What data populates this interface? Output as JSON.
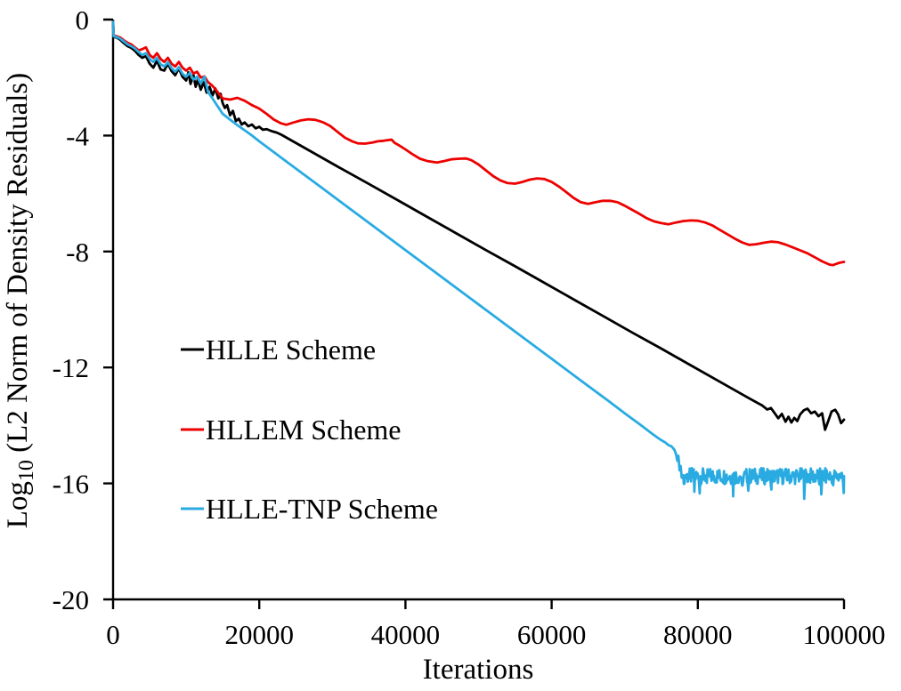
{
  "figure": {
    "xlabel": "Iterations",
    "ylabel_prefix": "Log",
    "ylabel_sub": "10",
    "ylabel_rest": " (L2 Norm of Density Residuals)"
  },
  "chart_data": {
    "type": "line",
    "title": "",
    "xlabel": "Iterations",
    "ylabel": "Log10 (L2 Norm of Density Residuals)",
    "xlim": [
      0,
      100000
    ],
    "ylim": [
      -20,
      0
    ],
    "xticks": [
      0,
      20000,
      40000,
      60000,
      80000,
      100000
    ],
    "xtick_labels": [
      "0",
      "20000",
      "40000",
      "60000",
      "80000",
      "100000"
    ],
    "yticks": [
      0,
      -4,
      -8,
      -12,
      -16,
      -20
    ],
    "ytick_labels": [
      "0",
      "-4",
      "-8",
      "-12",
      "-16",
      "-20"
    ],
    "grid": false,
    "legend_position": "inside-left-middle",
    "axis_color": "#000000",
    "series": [
      {
        "name": "HLLE Scheme",
        "color": "#000000",
        "points": [
          [
            0,
            -0.08
          ],
          [
            80,
            -0.6
          ],
          [
            500,
            -0.62
          ],
          [
            1000,
            -0.7
          ],
          [
            1500,
            -0.82
          ],
          [
            2000,
            -0.92
          ],
          [
            2500,
            -0.98
          ],
          [
            3000,
            -1.08
          ],
          [
            3500,
            -1.22
          ],
          [
            4000,
            -1.32
          ],
          [
            4500,
            -1.26
          ],
          [
            5000,
            -1.52
          ],
          [
            5500,
            -1.66
          ],
          [
            6000,
            -1.42
          ],
          [
            6500,
            -1.72
          ],
          [
            7000,
            -1.76
          ],
          [
            7500,
            -1.52
          ],
          [
            8000,
            -1.78
          ],
          [
            8500,
            -1.92
          ],
          [
            9000,
            -1.68
          ],
          [
            9500,
            -1.98
          ],
          [
            10000,
            -2.1
          ],
          [
            10300,
            -1.82
          ],
          [
            10600,
            -2.22
          ],
          [
            11000,
            -1.92
          ],
          [
            11300,
            -2.32
          ],
          [
            11600,
            -2.06
          ],
          [
            12000,
            -2.42
          ],
          [
            12400,
            -2.16
          ],
          [
            12800,
            -2.52
          ],
          [
            13200,
            -2.32
          ],
          [
            13600,
            -2.62
          ],
          [
            14000,
            -2.38
          ],
          [
            14400,
            -2.72
          ],
          [
            14700,
            -2.56
          ],
          [
            15000,
            -2.88
          ],
          [
            15300,
            -3.05
          ],
          [
            15600,
            -2.95
          ],
          [
            16000,
            -3.3
          ],
          [
            16400,
            -3.15
          ],
          [
            16800,
            -3.5
          ],
          [
            17200,
            -3.42
          ],
          [
            17600,
            -3.62
          ],
          [
            18000,
            -3.55
          ],
          [
            18500,
            -3.68
          ],
          [
            19000,
            -3.62
          ],
          [
            19500,
            -3.75
          ],
          [
            20000,
            -3.7
          ],
          [
            20500,
            -3.8
          ],
          [
            21000,
            -3.78
          ],
          [
            21700,
            -3.85
          ],
          [
            22400,
            -3.9
          ],
          [
            23000,
            -3.97
          ],
          [
            27000,
            -4.54
          ],
          [
            31000,
            -5.11
          ],
          [
            35000,
            -5.67
          ],
          [
            39000,
            -6.24
          ],
          [
            43000,
            -6.81
          ],
          [
            47000,
            -7.38
          ],
          [
            51000,
            -7.95
          ],
          [
            55000,
            -8.51
          ],
          [
            59000,
            -9.08
          ],
          [
            63000,
            -9.65
          ],
          [
            67000,
            -10.22
          ],
          [
            71000,
            -10.79
          ],
          [
            75000,
            -11.35
          ],
          [
            79000,
            -11.92
          ],
          [
            83000,
            -12.49
          ],
          [
            87000,
            -13.06
          ],
          [
            88800,
            -13.31
          ],
          [
            89500,
            -13.45
          ],
          [
            90000,
            -13.4
          ],
          [
            90500,
            -13.57
          ],
          [
            91000,
            -13.75
          ],
          [
            91500,
            -13.6
          ],
          [
            92000,
            -13.87
          ],
          [
            92400,
            -13.7
          ],
          [
            92800,
            -13.9
          ],
          [
            93200,
            -13.74
          ],
          [
            93600,
            -13.85
          ],
          [
            94000,
            -13.62
          ],
          [
            94500,
            -13.48
          ],
          [
            95000,
            -13.42
          ],
          [
            95500,
            -13.58
          ],
          [
            96000,
            -13.52
          ],
          [
            96500,
            -13.68
          ],
          [
            97000,
            -13.58
          ],
          [
            97400,
            -14.15
          ],
          [
            97800,
            -13.88
          ],
          [
            98300,
            -13.52
          ],
          [
            98800,
            -13.46
          ],
          [
            99200,
            -13.62
          ],
          [
            99600,
            -13.92
          ],
          [
            100000,
            -13.8
          ]
        ]
      },
      {
        "name": "HLLEM Scheme",
        "color": "#ed0000",
        "points": [
          [
            0,
            -0.08
          ],
          [
            80,
            -0.55
          ],
          [
            500,
            -0.58
          ],
          [
            1000,
            -0.62
          ],
          [
            1500,
            -0.72
          ],
          [
            2000,
            -0.8
          ],
          [
            2500,
            -0.86
          ],
          [
            3000,
            -0.96
          ],
          [
            3500,
            -1.06
          ],
          [
            4000,
            -1.02
          ],
          [
            4500,
            -0.96
          ],
          [
            5000,
            -1.22
          ],
          [
            5500,
            -1.32
          ],
          [
            6000,
            -1.16
          ],
          [
            6500,
            -1.36
          ],
          [
            7000,
            -1.46
          ],
          [
            7500,
            -1.32
          ],
          [
            8000,
            -1.52
          ],
          [
            8500,
            -1.62
          ],
          [
            9000,
            -1.46
          ],
          [
            9500,
            -1.66
          ],
          [
            10000,
            -1.76
          ],
          [
            10500,
            -1.66
          ],
          [
            11000,
            -1.86
          ],
          [
            11500,
            -1.8
          ],
          [
            12000,
            -2.0
          ],
          [
            12500,
            -1.96
          ],
          [
            13000,
            -2.16
          ],
          [
            13500,
            -2.26
          ],
          [
            14000,
            -2.4
          ],
          [
            14500,
            -2.56
          ],
          [
            15000,
            -2.72
          ],
          [
            16000,
            -2.76
          ],
          [
            17000,
            -2.7
          ],
          [
            18000,
            -2.8
          ],
          [
            19000,
            -2.95
          ],
          [
            20000,
            -3.07
          ],
          [
            21000,
            -3.25
          ],
          [
            22000,
            -3.45
          ],
          [
            23000,
            -3.58
          ],
          [
            23700,
            -3.63
          ],
          [
            24700,
            -3.55
          ],
          [
            25700,
            -3.48
          ],
          [
            26700,
            -3.44
          ],
          [
            27700,
            -3.46
          ],
          [
            28700,
            -3.54
          ],
          [
            29700,
            -3.67
          ],
          [
            30700,
            -3.87
          ],
          [
            31700,
            -4.07
          ],
          [
            32700,
            -4.2
          ],
          [
            33500,
            -4.27
          ],
          [
            34500,
            -4.28
          ],
          [
            35500,
            -4.24
          ],
          [
            36200,
            -4.2
          ],
          [
            37000,
            -4.18
          ],
          [
            38100,
            -4.14
          ],
          [
            38500,
            -4.25
          ],
          [
            39200,
            -4.35
          ],
          [
            40000,
            -4.48
          ],
          [
            41000,
            -4.65
          ],
          [
            42000,
            -4.8
          ],
          [
            43000,
            -4.88
          ],
          [
            44300,
            -4.93
          ],
          [
            45300,
            -4.88
          ],
          [
            46300,
            -4.82
          ],
          [
            47300,
            -4.8
          ],
          [
            48300,
            -4.79
          ],
          [
            49000,
            -4.85
          ],
          [
            50000,
            -5.0
          ],
          [
            51000,
            -5.2
          ],
          [
            52000,
            -5.4
          ],
          [
            53000,
            -5.55
          ],
          [
            54000,
            -5.64
          ],
          [
            55000,
            -5.66
          ],
          [
            56000,
            -5.6
          ],
          [
            57000,
            -5.52
          ],
          [
            58000,
            -5.48
          ],
          [
            59000,
            -5.5
          ],
          [
            60000,
            -5.6
          ],
          [
            61000,
            -5.76
          ],
          [
            62000,
            -5.95
          ],
          [
            63000,
            -6.15
          ],
          [
            64000,
            -6.3
          ],
          [
            65000,
            -6.36
          ],
          [
            66000,
            -6.3
          ],
          [
            67000,
            -6.25
          ],
          [
            68000,
            -6.25
          ],
          [
            69000,
            -6.3
          ],
          [
            70000,
            -6.42
          ],
          [
            71000,
            -6.56
          ],
          [
            72000,
            -6.7
          ],
          [
            73000,
            -6.85
          ],
          [
            74000,
            -6.96
          ],
          [
            75000,
            -7.02
          ],
          [
            76000,
            -7.06
          ],
          [
            77000,
            -7.0
          ],
          [
            78000,
            -6.95
          ],
          [
            79000,
            -6.93
          ],
          [
            80000,
            -6.94
          ],
          [
            81000,
            -7.0
          ],
          [
            82000,
            -7.1
          ],
          [
            83000,
            -7.25
          ],
          [
            84000,
            -7.4
          ],
          [
            85000,
            -7.55
          ],
          [
            86000,
            -7.68
          ],
          [
            87000,
            -7.77
          ],
          [
            88000,
            -7.75
          ],
          [
            89000,
            -7.7
          ],
          [
            90000,
            -7.66
          ],
          [
            91000,
            -7.68
          ],
          [
            92000,
            -7.76
          ],
          [
            93000,
            -7.86
          ],
          [
            94000,
            -7.96
          ],
          [
            95000,
            -8.06
          ],
          [
            96000,
            -8.2
          ],
          [
            97000,
            -8.34
          ],
          [
            98000,
            -8.45
          ],
          [
            98500,
            -8.47
          ],
          [
            99000,
            -8.42
          ],
          [
            99500,
            -8.38
          ],
          [
            100000,
            -8.36
          ]
        ]
      },
      {
        "name": "HLLE-TNP Scheme",
        "color": "#29abe2",
        "points": [
          [
            0,
            -0.08
          ],
          [
            80,
            -0.58
          ],
          [
            500,
            -0.6
          ],
          [
            1000,
            -0.66
          ],
          [
            1500,
            -0.76
          ],
          [
            2000,
            -0.86
          ],
          [
            2500,
            -0.92
          ],
          [
            3000,
            -1.0
          ],
          [
            3500,
            -1.12
          ],
          [
            4000,
            -1.22
          ],
          [
            4500,
            -1.16
          ],
          [
            5000,
            -1.36
          ],
          [
            5500,
            -1.46
          ],
          [
            6000,
            -1.32
          ],
          [
            6500,
            -1.54
          ],
          [
            7000,
            -1.62
          ],
          [
            7500,
            -1.47
          ],
          [
            8000,
            -1.67
          ],
          [
            8500,
            -1.8
          ],
          [
            9000,
            -1.64
          ],
          [
            9500,
            -1.87
          ],
          [
            10000,
            -1.97
          ],
          [
            10500,
            -1.84
          ],
          [
            11000,
            -2.07
          ],
          [
            11500,
            -1.97
          ],
          [
            12000,
            -2.2
          ],
          [
            12500,
            -1.97
          ],
          [
            13000,
            -2.5
          ],
          [
            13500,
            -2.68
          ],
          [
            14000,
            -2.87
          ],
          [
            14500,
            -3.06
          ],
          [
            15000,
            -3.25
          ],
          [
            16000,
            -3.45
          ],
          [
            17000,
            -3.64
          ],
          [
            18000,
            -3.82
          ],
          [
            19000,
            -4.0
          ],
          [
            20000,
            -4.2
          ],
          [
            24000,
            -4.95
          ],
          [
            28000,
            -5.7
          ],
          [
            32000,
            -6.45
          ],
          [
            36000,
            -7.2
          ],
          [
            40000,
            -7.95
          ],
          [
            44000,
            -8.7
          ],
          [
            48000,
            -9.45
          ],
          [
            52000,
            -10.2
          ],
          [
            56000,
            -10.95
          ],
          [
            60000,
            -11.7
          ],
          [
            64000,
            -12.45
          ],
          [
            68000,
            -13.2
          ],
          [
            70000,
            -13.58
          ],
          [
            72000,
            -13.95
          ],
          [
            73000,
            -14.14
          ],
          [
            74000,
            -14.33
          ],
          [
            74500,
            -14.42
          ],
          [
            75000,
            -14.51
          ],
          [
            75500,
            -14.58
          ],
          [
            76000,
            -14.68
          ],
          [
            76400,
            -14.72
          ],
          [
            76800,
            -14.84
          ],
          [
            77000,
            -14.98
          ],
          [
            77200,
            -15.22
          ],
          [
            77350,
            -15.05
          ],
          [
            77500,
            -15.55
          ],
          [
            77650,
            -15.4
          ],
          [
            77800,
            -15.8
          ],
          [
            78000,
            -15.72
          ]
        ],
        "noise_tail": {
          "from": 78000,
          "to": 100000,
          "step": 90,
          "center": -15.75,
          "amplitude": 0.28,
          "spike": -0.5
        }
      }
    ]
  },
  "legend": {
    "note": "labels bound from chart_data.series names"
  }
}
